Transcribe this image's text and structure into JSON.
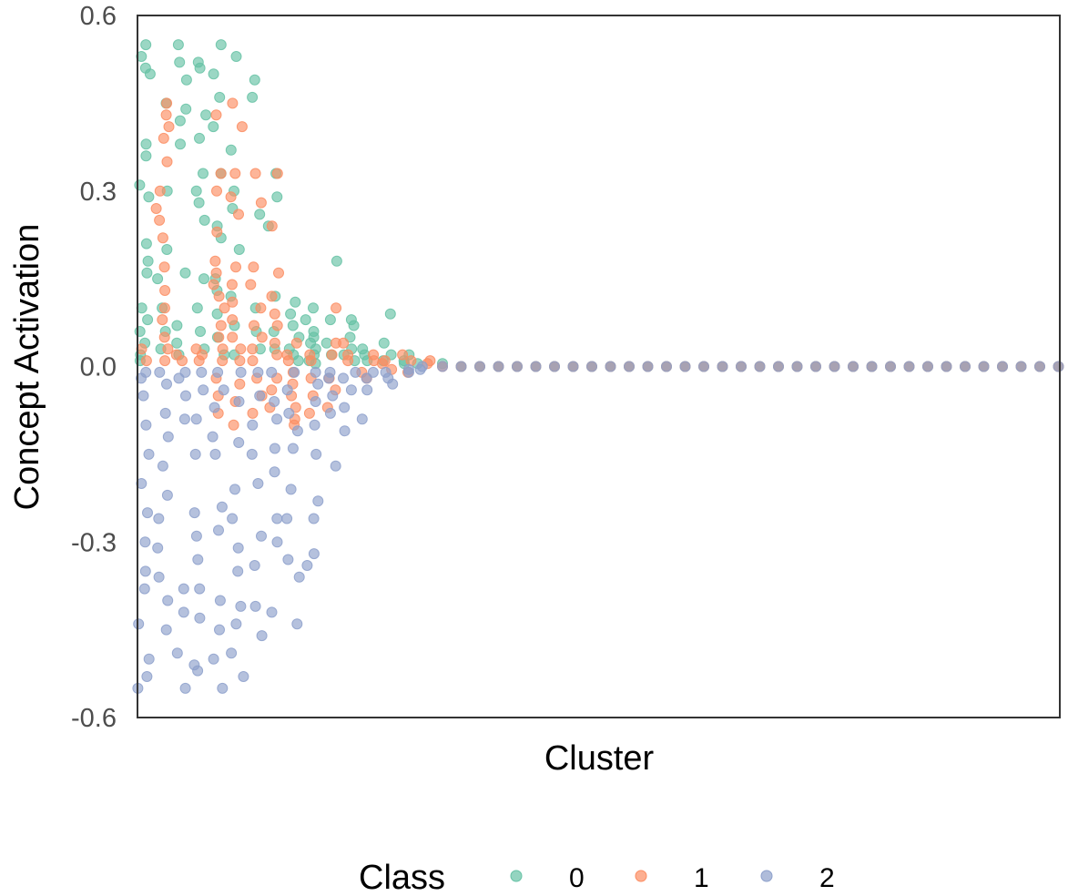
{
  "chart_data": {
    "type": "scatter",
    "title": "",
    "xlabel": "Cluster",
    "ylabel": "Concept Activation",
    "ylim": [
      -0.6,
      0.6
    ],
    "yticks": [
      {
        "value": 0.6,
        "label": "0.6"
      },
      {
        "value": 0.3,
        "label": "0.3"
      },
      {
        "value": 0.0,
        "label": "0.0"
      },
      {
        "value": -0.3,
        "label": "-0.3"
      },
      {
        "value": -0.6,
        "label": "-0.6"
      }
    ],
    "n_clusters": 50,
    "x_description": "50 clusters ordered by activation spread; points jittered horizontally within each cluster",
    "grid": false,
    "legend": {
      "title": "Class",
      "placement": "bottom",
      "entries": [
        {
          "label": "0",
          "color": "#66C2A5"
        },
        {
          "label": "1",
          "color": "#FC8D62"
        },
        {
          "label": "2",
          "color": "#8DA0CB"
        }
      ]
    },
    "series": [
      {
        "name": "0",
        "color": "#66C2A5",
        "values_by_cluster": [
          [
            0.55,
            0.53,
            0.51,
            0.5,
            0.38,
            0.36,
            0.31,
            0.29,
            0.21,
            0.18,
            0.16,
            0.1,
            0.08,
            0.06,
            0.04,
            0.02,
            0.01
          ],
          [
            0.45,
            0.3,
            0.2,
            0.15,
            0.1,
            0.06,
            0.03
          ],
          [
            0.55,
            0.52,
            0.49,
            0.44,
            0.42,
            0.38,
            0.16,
            0.07,
            0.04,
            0.02
          ],
          [
            0.52,
            0.51,
            0.43,
            0.39,
            0.33,
            0.3,
            0.28,
            0.25,
            0.15,
            0.1,
            0.06,
            0.03
          ],
          [
            0.55,
            0.5,
            0.46,
            0.41,
            0.33,
            0.24,
            0.22,
            0.15,
            0.13,
            0.09,
            0.05,
            0.02
          ],
          [
            0.53,
            0.37,
            0.3,
            0.27,
            0.2,
            0.12,
            0.07,
            0.02
          ],
          [
            0.49,
            0.46,
            0.26,
            0.1,
            0.06,
            0.03
          ],
          [
            0.33,
            0.29,
            0.24,
            0.12,
            0.06,
            0.03
          ],
          [
            0.11,
            0.09,
            0.07,
            0.05,
            0.03,
            0.02,
            0.01
          ],
          [
            0.1,
            0.08,
            0.06,
            0.05,
            0.04,
            0.03,
            0.02,
            0.01,
            0.005
          ],
          [
            0.18,
            0.08,
            0.04,
            0.02
          ],
          [
            0.08,
            0.07,
            0.05,
            0.03,
            0.02,
            0.01
          ],
          [
            0.03,
            0.02,
            0.01
          ],
          [
            0.09,
            0.04,
            0.02,
            0.01
          ],
          [
            0.02,
            0.01,
            0.005
          ],
          [
            0.005
          ],
          [
            0.005
          ],
          [
            0.0
          ],
          [
            0.0
          ],
          [
            0.0
          ],
          [
            0.0
          ],
          [
            0.0
          ],
          [
            0.0
          ],
          [
            0.0
          ],
          [
            0.0
          ],
          [
            0.0
          ],
          [
            0.0
          ],
          [
            0.0
          ],
          [
            0.0
          ],
          [
            0.0
          ],
          [
            0.0
          ],
          [
            0.0
          ],
          [
            0.0
          ],
          [
            0.0
          ],
          [
            0.0
          ],
          [
            0.0
          ],
          [
            0.0
          ],
          [
            0.0
          ],
          [
            0.0
          ],
          [
            0.0
          ],
          [
            0.0
          ],
          [
            0.0
          ],
          [
            0.0
          ],
          [
            0.0
          ],
          [
            0.0
          ],
          [
            0.0
          ],
          [
            0.0
          ],
          [
            0.0
          ],
          [
            0.0
          ],
          [
            0.0
          ]
        ]
      },
      {
        "name": "1",
        "color": "#FC8D62",
        "values_by_cluster": [
          [
            0.03,
            0.01
          ],
          [
            0.45,
            0.43,
            0.41,
            0.39,
            0.35,
            0.3,
            0.27,
            0.25,
            0.22,
            0.17,
            0.13,
            0.1,
            0.08,
            0.05,
            0.03,
            0.01
          ],
          [
            0.02,
            0.01
          ],
          [
            0.03,
            0.02,
            0.01
          ],
          [
            0.43,
            0.33,
            0.3,
            0.23,
            0.18,
            0.16,
            0.14,
            0.12,
            0.1,
            0.07,
            0.05,
            0.03,
            0.01,
            -0.02,
            -0.05,
            -0.08
          ],
          [
            0.45,
            0.41,
            0.33,
            0.29,
            0.26,
            0.17,
            0.14,
            0.11,
            0.08,
            0.05,
            0.03,
            0.01,
            -0.03,
            -0.06,
            -0.1
          ],
          [
            0.33,
            0.28,
            0.17,
            0.14,
            0.1,
            0.07,
            0.05,
            0.03,
            0.01,
            -0.02,
            -0.05,
            -0.08
          ],
          [
            0.33,
            0.24,
            0.16,
            0.12,
            0.09,
            0.07,
            0.04,
            0.02,
            -0.02,
            -0.04,
            -0.07
          ],
          [
            0.04,
            0.02,
            0.01,
            -0.01,
            -0.03,
            -0.05,
            -0.07,
            -0.09,
            -0.1
          ],
          [
            0.02,
            0.01,
            -0.02,
            -0.05,
            -0.08
          ],
          [
            0.1,
            0.04,
            0.02,
            -0.02,
            -0.04,
            -0.07
          ],
          [
            0.04,
            0.02,
            0.01
          ],
          [
            0.02,
            0.01,
            -0.01,
            -0.02
          ],
          [
            0.01,
            0.005,
            -0.005
          ],
          [
            0.02,
            0.01,
            -0.01
          ],
          [
            0.01,
            0.005
          ],
          [
            0.0
          ],
          [
            0.0
          ],
          [
            0.0
          ],
          [
            0.0
          ],
          [
            0.0
          ],
          [
            0.0
          ],
          [
            0.0
          ],
          [
            0.0
          ],
          [
            0.0
          ],
          [
            0.0
          ],
          [
            0.0
          ],
          [
            0.0
          ],
          [
            0.0
          ],
          [
            0.0
          ],
          [
            0.0
          ],
          [
            0.0
          ],
          [
            0.0
          ],
          [
            0.0
          ],
          [
            0.0
          ],
          [
            0.0
          ],
          [
            0.0
          ],
          [
            0.0
          ],
          [
            0.0
          ],
          [
            0.0
          ],
          [
            0.0
          ],
          [
            0.0
          ],
          [
            0.0
          ],
          [
            0.0
          ],
          [
            0.0
          ],
          [
            0.0
          ],
          [
            0.0
          ],
          [
            0.0
          ],
          [
            0.0
          ],
          [
            0.0
          ]
        ]
      },
      {
        "name": "2",
        "color": "#8DA0CB",
        "values_by_cluster": [
          [
            -0.05,
            -0.1,
            -0.15,
            -0.2,
            -0.25,
            -0.3,
            -0.35,
            -0.38,
            -0.44,
            -0.5,
            -0.53,
            -0.55,
            -0.01,
            -0.02
          ],
          [
            -0.03,
            -0.08,
            -0.12,
            -0.17,
            -0.22,
            -0.26,
            -0.31,
            -0.36,
            -0.4,
            -0.45,
            -0.01
          ],
          [
            -0.02,
            -0.05,
            -0.09,
            -0.38,
            -0.42,
            -0.49,
            -0.55,
            -0.01
          ],
          [
            -0.04,
            -0.09,
            -0.15,
            -0.25,
            -0.29,
            -0.33,
            -0.38,
            -0.43,
            -0.51,
            -0.52,
            -0.01
          ],
          [
            -0.04,
            -0.07,
            -0.12,
            -0.15,
            -0.24,
            -0.28,
            -0.4,
            -0.45,
            -0.5,
            -0.55,
            -0.01
          ],
          [
            -0.06,
            -0.13,
            -0.21,
            -0.26,
            -0.31,
            -0.35,
            -0.41,
            -0.44,
            -0.49,
            -0.53,
            -0.01
          ],
          [
            -0.05,
            -0.1,
            -0.15,
            -0.2,
            -0.29,
            -0.34,
            -0.41,
            -0.46,
            -0.01
          ],
          [
            -0.06,
            -0.09,
            -0.14,
            -0.18,
            -0.26,
            -0.3,
            -0.42,
            -0.01
          ],
          [
            -0.04,
            -0.08,
            -0.11,
            -0.14,
            -0.21,
            -0.26,
            -0.33,
            -0.36,
            -0.44,
            -0.01
          ],
          [
            -0.03,
            -0.06,
            -0.1,
            -0.15,
            -0.23,
            -0.26,
            -0.32,
            -0.34,
            -0.01
          ],
          [
            -0.02,
            -0.05,
            -0.08,
            -0.17,
            -0.01
          ],
          [
            -0.02,
            -0.04,
            -0.07,
            -0.11,
            -0.01
          ],
          [
            -0.02,
            -0.04,
            -0.09,
            -0.01
          ],
          [
            -0.01,
            -0.02,
            -0.03
          ],
          [
            -0.01,
            -0.005
          ],
          [
            0.0,
            -0.005
          ],
          [
            0.0
          ],
          [
            0.0
          ],
          [
            0.0
          ],
          [
            0.0
          ],
          [
            0.0
          ],
          [
            0.0
          ],
          [
            0.0
          ],
          [
            0.0
          ],
          [
            0.0
          ],
          [
            0.0
          ],
          [
            0.0
          ],
          [
            0.0
          ],
          [
            0.0
          ],
          [
            0.0
          ],
          [
            0.0
          ],
          [
            0.0
          ],
          [
            0.0
          ],
          [
            0.0
          ],
          [
            0.0
          ],
          [
            0.0
          ],
          [
            0.0
          ],
          [
            0.0
          ],
          [
            0.0
          ],
          [
            0.0
          ],
          [
            0.0
          ],
          [
            0.0
          ],
          [
            0.0
          ],
          [
            0.0
          ],
          [
            0.0
          ],
          [
            0.0
          ],
          [
            0.0
          ],
          [
            0.0
          ],
          [
            0.0
          ],
          [
            0.0
          ]
        ]
      }
    ]
  }
}
